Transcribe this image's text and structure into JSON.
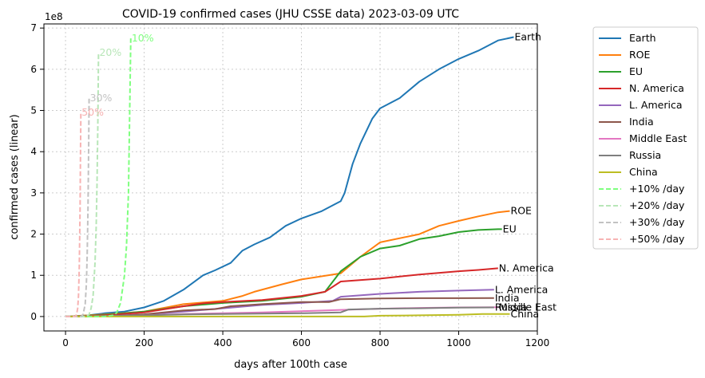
{
  "chart_data": {
    "type": "line",
    "title": "COVID-19 confirmed cases (JHU CSSE data) 2023-03-09 UTC",
    "xlabel": "days after 100th case",
    "ylabel": "confirmed cases (linear)",
    "y_multiplier_label": "1e8",
    "xlim": [
      -55,
      1200
    ],
    "ylim": [
      -0.35,
      7.1
    ],
    "xticks": [
      0,
      200,
      400,
      600,
      800,
      1000,
      1200
    ],
    "xtick_labels": [
      "0",
      "200",
      "400",
      "600",
      "800",
      "1000",
      "1200"
    ],
    "yticks": [
      0,
      1,
      2,
      3,
      4,
      5,
      6,
      7
    ],
    "ytick_labels": [
      "0",
      "1",
      "2",
      "3",
      "4",
      "5",
      "6",
      "7"
    ],
    "grid": true,
    "legend_position": "outside-right",
    "series": [
      {
        "name": "Earth",
        "color": "#1f77b4",
        "dashed": false,
        "end_label": "Earth",
        "x": [
          0,
          50,
          100,
          150,
          200,
          250,
          300,
          350,
          380,
          420,
          450,
          480,
          520,
          560,
          600,
          650,
          700,
          710,
          730,
          750,
          780,
          800,
          850,
          900,
          950,
          1000,
          1050,
          1100,
          1140
        ],
        "y": [
          0,
          0.02,
          0.08,
          0.12,
          0.22,
          0.38,
          0.65,
          1.0,
          1.12,
          1.3,
          1.6,
          1.75,
          1.92,
          2.2,
          2.38,
          2.55,
          2.8,
          3.0,
          3.7,
          4.2,
          4.8,
          5.05,
          5.3,
          5.7,
          6.0,
          6.25,
          6.45,
          6.7,
          6.78
        ]
      },
      {
        "name": "ROE",
        "color": "#ff7f0e",
        "dashed": false,
        "end_label": "ROE",
        "x": [
          0,
          100,
          200,
          300,
          400,
          450,
          480,
          550,
          600,
          700,
          750,
          800,
          900,
          950,
          1000,
          1050,
          1100,
          1130
        ],
        "y": [
          0,
          0.05,
          0.12,
          0.3,
          0.38,
          0.5,
          0.6,
          0.78,
          0.9,
          1.05,
          1.45,
          1.8,
          2.0,
          2.2,
          2.32,
          2.43,
          2.53,
          2.56
        ]
      },
      {
        "name": "EU",
        "color": "#2ca02c",
        "dashed": false,
        "end_label": "EU",
        "x": [
          0,
          100,
          200,
          300,
          400,
          500,
          600,
          660,
          700,
          750,
          800,
          850,
          900,
          950,
          1000,
          1050,
          1100,
          1110
        ],
        "y": [
          0,
          0.04,
          0.12,
          0.25,
          0.33,
          0.38,
          0.48,
          0.6,
          1.1,
          1.45,
          1.65,
          1.72,
          1.88,
          1.95,
          2.05,
          2.1,
          2.12,
          2.12
        ]
      },
      {
        "name": "N. America",
        "color": "#d62728",
        "dashed": false,
        "end_label": "N. America",
        "x": [
          0,
          100,
          200,
          300,
          350,
          400,
          500,
          600,
          660,
          700,
          800,
          900,
          1000,
          1050,
          1100
        ],
        "y": [
          0,
          0.03,
          0.1,
          0.25,
          0.32,
          0.35,
          0.4,
          0.5,
          0.6,
          0.85,
          0.92,
          1.02,
          1.1,
          1.13,
          1.17
        ]
      },
      {
        "name": "L. America",
        "color": "#9467bd",
        "dashed": false,
        "end_label": "L. America",
        "x": [
          0,
          100,
          200,
          300,
          400,
          500,
          600,
          680,
          700,
          800,
          900,
          1000,
          1090
        ],
        "y": [
          0,
          0.01,
          0.05,
          0.12,
          0.2,
          0.28,
          0.33,
          0.38,
          0.48,
          0.55,
          0.6,
          0.63,
          0.65
        ]
      },
      {
        "name": "India",
        "color": "#8c564b",
        "dashed": false,
        "end_label": "India",
        "x": [
          0,
          100,
          200,
          300,
          380,
          420,
          500,
          600,
          670,
          700,
          750,
          800,
          900,
          1000,
          1090
        ],
        "y": [
          0,
          0.01,
          0.05,
          0.15,
          0.18,
          0.25,
          0.3,
          0.35,
          0.35,
          0.42,
          0.43,
          0.44,
          0.445,
          0.446,
          0.447
        ]
      },
      {
        "name": "Middle East",
        "color": "#e377c2",
        "dashed": false,
        "end_label": "Middle East",
        "x": [
          0,
          100,
          200,
          300,
          400,
          500,
          600,
          700,
          800,
          900,
          1000,
          1100
        ],
        "y": [
          0,
          0.01,
          0.03,
          0.06,
          0.08,
          0.1,
          0.13,
          0.16,
          0.19,
          0.21,
          0.22,
          0.225
        ]
      },
      {
        "name": "Russia",
        "color": "#7f7f7f",
        "dashed": false,
        "end_label": "Russia",
        "x": [
          0,
          100,
          200,
          300,
          400,
          500,
          600,
          700,
          720,
          800,
          900,
          950,
          1000,
          1090
        ],
        "y": [
          0,
          0.01,
          0.03,
          0.05,
          0.06,
          0.07,
          0.08,
          0.1,
          0.17,
          0.19,
          0.2,
          0.21,
          0.215,
          0.22
        ]
      },
      {
        "name": "China",
        "color": "#bcbd22",
        "dashed": false,
        "end_label": "China",
        "x": [
          0,
          200,
          400,
          600,
          760,
          800,
          900,
          1000,
          1060,
          1130
        ],
        "y": [
          0,
          0.0,
          0.0,
          0.0,
          0.0,
          0.02,
          0.03,
          0.04,
          0.06,
          0.06
        ]
      },
      {
        "name": "+10% /day",
        "color": "#7fff7f",
        "dashed": true,
        "end_label": "10%",
        "x": [
          0,
          100,
          120,
          130,
          140,
          150,
          155,
          160,
          163,
          166
        ],
        "y": [
          0,
          0.0,
          0.03,
          0.09,
          0.33,
          1.0,
          1.7,
          3.0,
          4.8,
          6.75
        ]
      },
      {
        "name": "+20% /day",
        "color": "#b8e6b8",
        "dashed": true,
        "end_label": "20%",
        "x": [
          0,
          50,
          60,
          65,
          70,
          75,
          78,
          80,
          82,
          84
        ],
        "y": [
          0,
          0.0,
          0.05,
          0.2,
          0.5,
          1.3,
          2.2,
          3.2,
          4.6,
          6.4
        ]
      },
      {
        "name": "+30% /day",
        "color": "#c2c2c2",
        "dashed": true,
        "end_label": "30%",
        "x": [
          0,
          40,
          45,
          50,
          53,
          55,
          57,
          59,
          60
        ],
        "y": [
          0,
          0.0,
          0.06,
          0.3,
          0.8,
          1.5,
          2.6,
          4.2,
          5.3
        ]
      },
      {
        "name": "+50% /day",
        "color": "#f7b3b3",
        "dashed": true,
        "end_label": "50%",
        "x": [
          0,
          25,
          28,
          31,
          33,
          35,
          37,
          38,
          39
        ],
        "y": [
          0,
          0.0,
          0.05,
          0.2,
          0.5,
          1.2,
          2.6,
          3.9,
          4.95
        ]
      }
    ]
  }
}
